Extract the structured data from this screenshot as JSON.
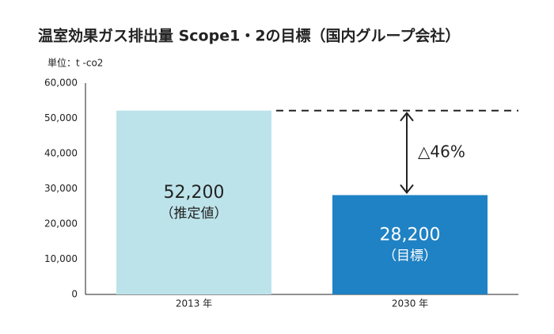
{
  "chart_data": {
    "type": "bar",
    "title": "温室効果ガス排出量 Scope1・2の目標（国内グループ会社）",
    "unit_label": "単位：t -co2",
    "categories": [
      "2013 年",
      "2030 年"
    ],
    "values": [
      52200,
      28200
    ],
    "value_labels": [
      "52,200",
      "28,200"
    ],
    "value_notes": [
      "（推定値）",
      "（目標）"
    ],
    "colors": [
      "#bde3ea",
      "#1f82c4"
    ],
    "annotation": "△46%",
    "ylim": [
      0,
      60000
    ],
    "yticks": [
      0,
      {
        "value": 10000,
        "label": "10,000"
      },
      {
        "value": 20000,
        "label": "20,000"
      },
      {
        "value": 30000,
        "label": "30,000"
      },
      {
        "value": 40000,
        "label": "40,000"
      },
      {
        "value": 50000,
        "label": "50,000"
      },
      {
        "value": 60000,
        "label": "60,000"
      }
    ]
  }
}
